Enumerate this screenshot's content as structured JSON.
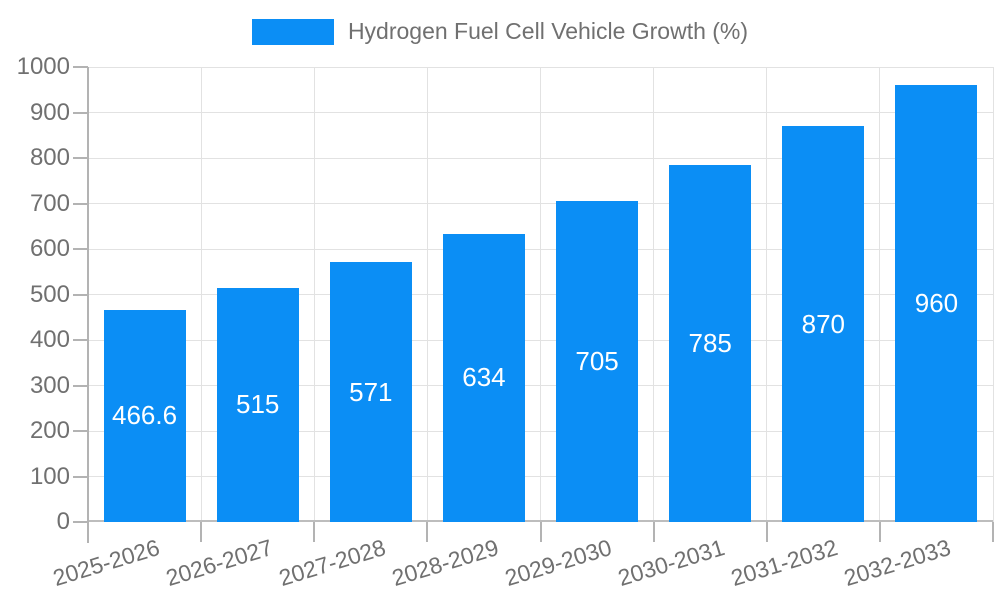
{
  "legend": {
    "label": "Hydrogen Fuel Cell Vehicle Growth (%)",
    "swatch_color": "#0b8ef5"
  },
  "chart_data": {
    "type": "bar",
    "title": "Hydrogen Fuel Cell Vehicle Growth (%)",
    "categories": [
      "2025-2026",
      "2026-2027",
      "2027-2028",
      "2028-2029",
      "2029-2030",
      "2030-2031",
      "2031-2032",
      "2032-2033"
    ],
    "values": [
      466.6,
      515,
      571,
      634,
      705,
      785,
      870,
      960
    ],
    "value_labels": [
      "466.6",
      "515",
      "571",
      "634",
      "705",
      "785",
      "870",
      "960"
    ],
    "xlabel": "",
    "ylabel": "",
    "ylim": [
      0,
      1000
    ],
    "ytick_step": 100,
    "ytick_labels": [
      "0",
      "100",
      "200",
      "300",
      "400",
      "500",
      "600",
      "700",
      "800",
      "900",
      "1000"
    ],
    "grid": true,
    "legend_position": "top-center",
    "bar_color": "#0b8ef5",
    "value_label_color": "#ffffff",
    "axis_text_color": "#707070",
    "grid_color": "#e2e2e2",
    "axis_line_color": "#b3b3b3"
  }
}
